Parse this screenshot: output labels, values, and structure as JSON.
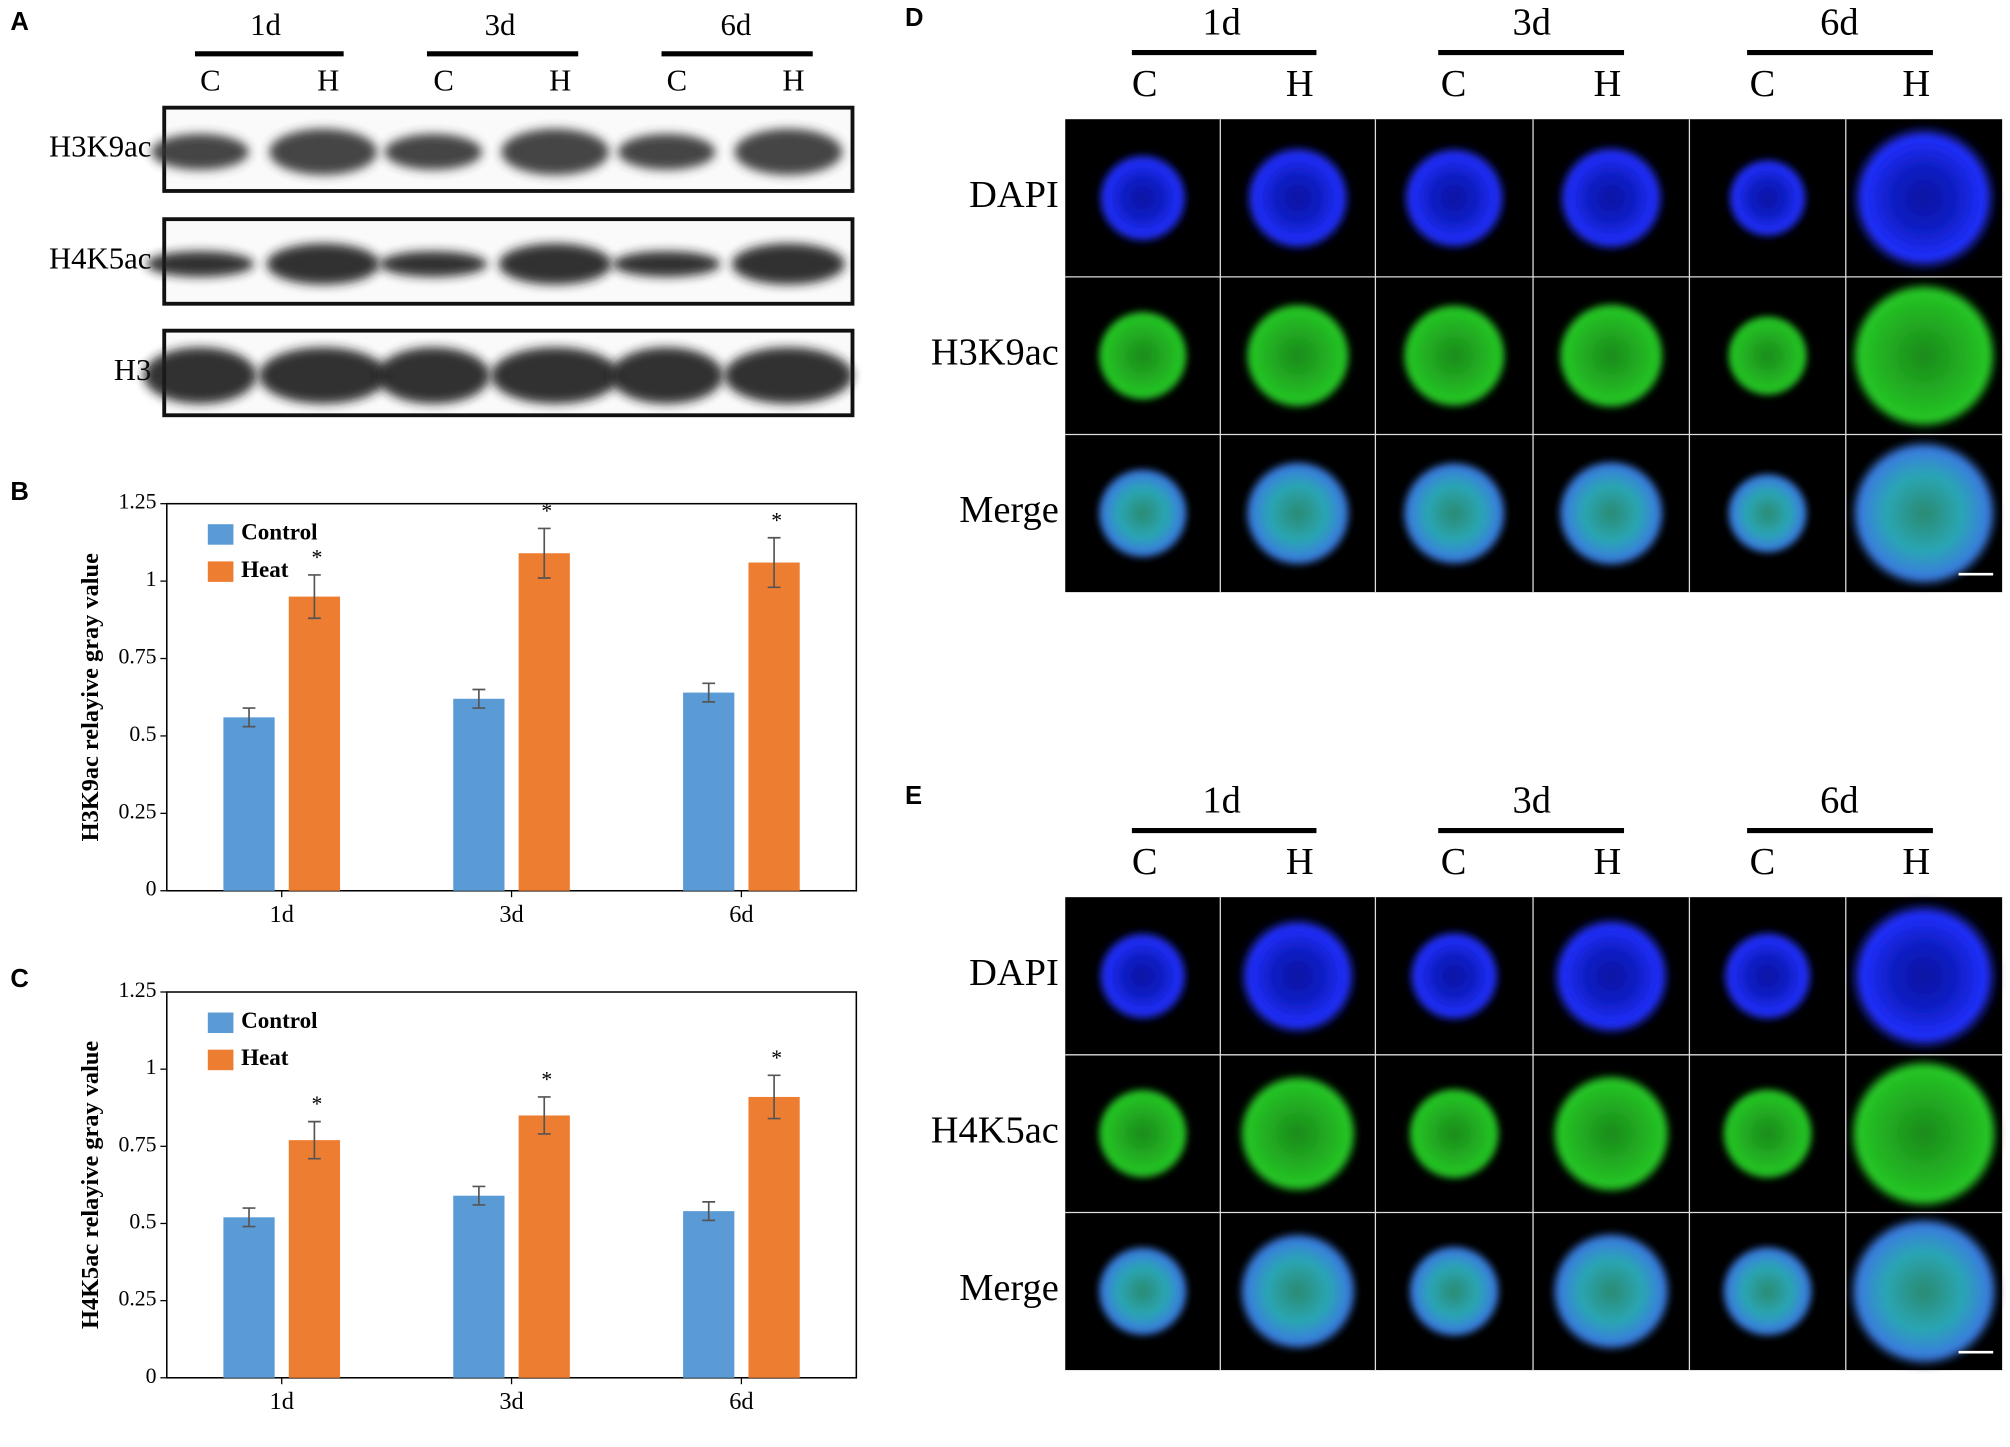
{
  "panel_labels": [
    "A",
    "B",
    "C",
    "D",
    "E"
  ],
  "western_blot": {
    "days": [
      "1d",
      "3d",
      "6d"
    ],
    "lanes": [
      "C",
      "H",
      "C",
      "H",
      "C",
      "H"
    ],
    "rows": [
      "H3K9ac",
      "H4K5ac",
      "H3"
    ]
  },
  "chart_data": [
    {
      "type": "bar",
      "y_label": "H3K9ac relayive gray value",
      "categories": [
        "1d",
        "3d",
        "6d"
      ],
      "series": [
        {
          "name": "Control",
          "color": "#5b9bd5",
          "values": [
            0.56,
            0.62,
            0.64
          ],
          "errors": [
            0.03,
            0.03,
            0.03
          ]
        },
        {
          "name": "Heat",
          "color": "#ed7d31",
          "values": [
            0.95,
            1.09,
            1.06
          ],
          "errors": [
            0.07,
            0.08,
            0.08
          ],
          "significance": [
            "*",
            "*",
            "*"
          ]
        }
      ],
      "ylim": [
        0,
        1.25
      ],
      "yticks": [
        0,
        0.25,
        0.5,
        0.75,
        1,
        1.25
      ],
      "legend": "upper left"
    },
    {
      "type": "bar",
      "y_label": "H4K5ac relayive gray value",
      "categories": [
        "1d",
        "3d",
        "6d"
      ],
      "series": [
        {
          "name": "Control",
          "color": "#5b9bd5",
          "values": [
            0.52,
            0.59,
            0.54
          ],
          "errors": [
            0.03,
            0.03,
            0.03
          ]
        },
        {
          "name": "Heat",
          "color": "#ed7d31",
          "values": [
            0.77,
            0.85,
            0.91
          ],
          "errors": [
            0.06,
            0.06,
            0.07
          ],
          "significance": [
            "*",
            "*",
            "*"
          ]
        }
      ],
      "ylim": [
        0,
        1.25
      ],
      "yticks": [
        0,
        0.25,
        0.5,
        0.75,
        1,
        1.25
      ],
      "legend": "upper left"
    }
  ],
  "panel_d": {
    "days": [
      "1d",
      "3d",
      "6d"
    ],
    "lanes": [
      "C",
      "H",
      "C",
      "H",
      "C",
      "H"
    ],
    "rows": [
      "DAPI",
      "H3K9ac",
      "Merge"
    ]
  },
  "panel_e": {
    "days": [
      "1d",
      "3d",
      "6d"
    ],
    "lanes": [
      "C",
      "H",
      "C",
      "H",
      "C",
      "H"
    ],
    "rows": [
      "DAPI",
      "H4K5ac",
      "Merge"
    ]
  }
}
